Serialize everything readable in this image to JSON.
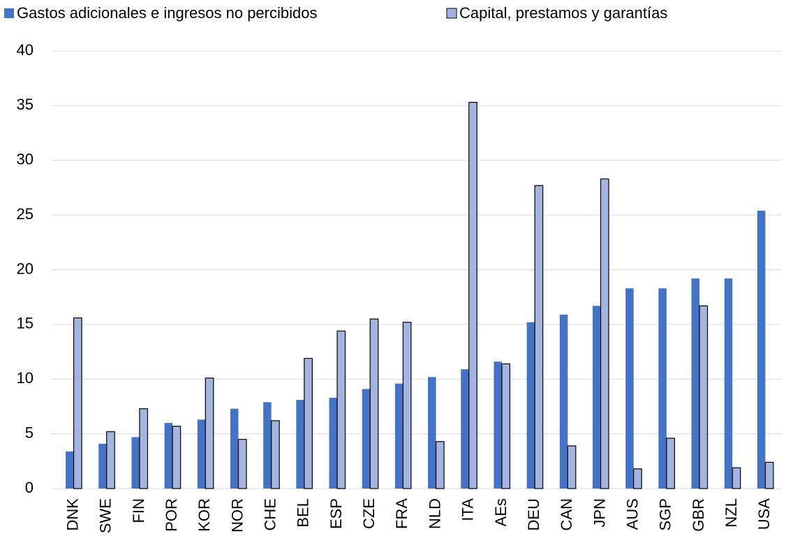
{
  "chart_data": {
    "type": "bar",
    "legend": "top",
    "grid": true,
    "categories": [
      "DNK",
      "SWE",
      "FIN",
      "POR",
      "KOR",
      "NOR",
      "CHE",
      "BEL",
      "ESP",
      "CZE",
      "FRA",
      "NLD",
      "ITA",
      "AEs",
      "DEU",
      "CAN",
      "JPN",
      "AUS",
      "SGP",
      "GBR",
      "NZL",
      "USA"
    ],
    "series": [
      {
        "name": "Gastos adicionales e ingresos no percibidos",
        "color": "#4472c4",
        "values": [
          3.4,
          4.1,
          4.7,
          6.0,
          6.3,
          7.3,
          7.9,
          8.1,
          8.3,
          9.1,
          9.6,
          10.2,
          10.9,
          11.6,
          15.2,
          15.9,
          16.7,
          18.3,
          18.3,
          19.2,
          19.2,
          25.4
        ]
      },
      {
        "name": "Capital, prestamos y garantías",
        "color": "#a3b4e0",
        "values": [
          15.6,
          5.2,
          7.3,
          5.7,
          10.1,
          4.5,
          6.2,
          11.9,
          14.4,
          15.5,
          15.2,
          4.3,
          35.3,
          11.4,
          27.7,
          3.9,
          28.3,
          1.8,
          4.6,
          16.7,
          1.9,
          2.4
        ]
      }
    ],
    "ylim": [
      0,
      40
    ],
    "yticks": [
      0,
      5,
      10,
      15,
      20,
      25,
      30,
      35,
      40
    ]
  }
}
